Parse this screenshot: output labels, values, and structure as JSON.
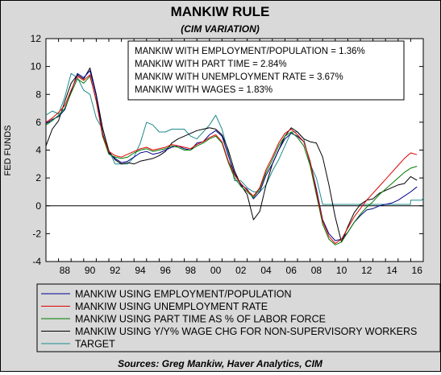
{
  "chart_data": {
    "type": "line",
    "title": "MANKIW RULE",
    "subtitle": "(CIM VARIATION)",
    "ylabel": "FED FUNDS",
    "xlabel": "",
    "xlim": [
      1987,
      2017
    ],
    "ylim": [
      -4,
      12
    ],
    "yticks": [
      -4,
      -2,
      0,
      2,
      4,
      6,
      8,
      10,
      12
    ],
    "xtick_labels": [
      "88",
      "90",
      "92",
      "94",
      "96",
      "98",
      "00",
      "02",
      "04",
      "06",
      "08",
      "10",
      "12",
      "14",
      "16"
    ],
    "zero_line": true,
    "grid": false,
    "legend_position": "bottom",
    "annotations": [
      "MANKIW WITH EMPLOYMENT/POPULATION = 1.36%",
      "MANKIW WITH PART TIME = 2.84%",
      "MANKIW WITH UNEMPLOYMENT RATE = 3.67%",
      "MANKIW WITH WAGES = 1.83%"
    ],
    "source": "Sources:  Greg Mankiw, Haver Analytics, CIM",
    "series": [
      {
        "name": "MANKIW USING EMPLOYMENT/POPULATION",
        "color": "#00008B",
        "points": [
          [
            1987.0,
            5.9
          ],
          [
            1987.5,
            6.2
          ],
          [
            1988.0,
            6.4
          ],
          [
            1988.5,
            6.9
          ],
          [
            1989.0,
            8.2
          ],
          [
            1989.5,
            9.5
          ],
          [
            1990.0,
            9.2
          ],
          [
            1990.5,
            9.7
          ],
          [
            1991.0,
            7.9
          ],
          [
            1991.5,
            5.2
          ],
          [
            1992.0,
            3.8
          ],
          [
            1992.5,
            3.4
          ],
          [
            1993.0,
            3.1
          ],
          [
            1993.5,
            3.2
          ],
          [
            1994.0,
            3.5
          ],
          [
            1994.5,
            3.8
          ],
          [
            1995.0,
            3.9
          ],
          [
            1995.5,
            3.7
          ],
          [
            1996.0,
            3.8
          ],
          [
            1996.5,
            4.0
          ],
          [
            1997.0,
            4.2
          ],
          [
            1997.5,
            4.3
          ],
          [
            1998.0,
            4.1
          ],
          [
            1998.5,
            4.0
          ],
          [
            1999.0,
            4.5
          ],
          [
            1999.5,
            4.6
          ],
          [
            2000.0,
            5.1
          ],
          [
            2000.5,
            5.4
          ],
          [
            2001.0,
            5.0
          ],
          [
            2001.5,
            3.6
          ],
          [
            2002.0,
            2.3
          ],
          [
            2002.5,
            1.5
          ],
          [
            2003.0,
            1.2
          ],
          [
            2003.5,
            0.5
          ],
          [
            2004.0,
            1.0
          ],
          [
            2004.5,
            2.2
          ],
          [
            2005.0,
            3.0
          ],
          [
            2005.5,
            4.0
          ],
          [
            2006.0,
            4.8
          ],
          [
            2006.5,
            5.2
          ],
          [
            2007.0,
            5.0
          ],
          [
            2007.5,
            4.6
          ],
          [
            2008.0,
            3.2
          ],
          [
            2008.5,
            1.2
          ],
          [
            2009.0,
            -1.0
          ],
          [
            2009.5,
            -2.0
          ],
          [
            2010.0,
            -2.5
          ],
          [
            2010.5,
            -2.4
          ],
          [
            2011.0,
            -1.9
          ],
          [
            2011.5,
            -1.2
          ],
          [
            2012.0,
            -0.7
          ],
          [
            2012.5,
            -0.3
          ],
          [
            2013.0,
            -0.2
          ],
          [
            2013.5,
            0.0
          ],
          [
            2014.0,
            0.1
          ],
          [
            2014.5,
            0.2
          ],
          [
            2015.0,
            0.4
          ],
          [
            2015.5,
            0.7
          ],
          [
            2016.0,
            1.0
          ],
          [
            2016.5,
            1.36
          ]
        ]
      },
      {
        "name": "MANKIW USING UNEMPLOYMENT RATE",
        "color": "#E00000",
        "points": [
          [
            1987.0,
            6.0
          ],
          [
            1987.5,
            6.3
          ],
          [
            1988.0,
            6.7
          ],
          [
            1988.5,
            7.2
          ],
          [
            1989.0,
            8.3
          ],
          [
            1989.5,
            9.3
          ],
          [
            1990.0,
            9.0
          ],
          [
            1990.5,
            9.4
          ],
          [
            1991.0,
            7.5
          ],
          [
            1991.5,
            5.1
          ],
          [
            1992.0,
            3.9
          ],
          [
            1992.5,
            3.6
          ],
          [
            1993.0,
            3.5
          ],
          [
            1993.5,
            3.7
          ],
          [
            1994.0,
            3.9
          ],
          [
            1994.5,
            4.1
          ],
          [
            1995.0,
            4.2
          ],
          [
            1995.5,
            4.0
          ],
          [
            1996.0,
            4.1
          ],
          [
            1996.5,
            4.2
          ],
          [
            1997.0,
            4.4
          ],
          [
            1997.5,
            4.3
          ],
          [
            1998.0,
            4.2
          ],
          [
            1998.5,
            4.1
          ],
          [
            1999.0,
            4.4
          ],
          [
            1999.5,
            4.6
          ],
          [
            2000.0,
            4.9
          ],
          [
            2000.5,
            5.1
          ],
          [
            2001.0,
            4.6
          ],
          [
            2001.5,
            3.2
          ],
          [
            2002.0,
            2.2
          ],
          [
            2002.5,
            1.6
          ],
          [
            2003.0,
            1.1
          ],
          [
            2003.5,
            0.7
          ],
          [
            2004.0,
            1.3
          ],
          [
            2004.5,
            2.6
          ],
          [
            2005.0,
            3.5
          ],
          [
            2005.5,
            4.5
          ],
          [
            2006.0,
            5.2
          ],
          [
            2006.5,
            5.5
          ],
          [
            2007.0,
            5.1
          ],
          [
            2007.5,
            4.6
          ],
          [
            2008.0,
            3.2
          ],
          [
            2008.5,
            1.0
          ],
          [
            2009.0,
            -1.1
          ],
          [
            2009.5,
            -2.2
          ],
          [
            2010.0,
            -2.7
          ],
          [
            2010.5,
            -2.4
          ],
          [
            2011.0,
            -1.6
          ],
          [
            2011.5,
            -0.8
          ],
          [
            2012.0,
            -0.2
          ],
          [
            2012.5,
            0.4
          ],
          [
            2013.0,
            0.9
          ],
          [
            2013.5,
            1.4
          ],
          [
            2014.0,
            1.9
          ],
          [
            2014.5,
            2.4
          ],
          [
            2015.0,
            2.9
          ],
          [
            2015.5,
            3.4
          ],
          [
            2016.0,
            3.8
          ],
          [
            2016.5,
            3.67
          ]
        ]
      },
      {
        "name": "MANKIW USING PART TIME AS % OF LABOR FORCE",
        "color": "#007A00",
        "points": [
          [
            1987.0,
            5.8
          ],
          [
            1987.5,
            6.1
          ],
          [
            1988.0,
            6.5
          ],
          [
            1988.5,
            7.0
          ],
          [
            1989.0,
            8.1
          ],
          [
            1989.5,
            9.1
          ],
          [
            1990.0,
            8.8
          ],
          [
            1990.5,
            9.3
          ],
          [
            1991.0,
            7.6
          ],
          [
            1991.5,
            5.0
          ],
          [
            1992.0,
            3.7
          ],
          [
            1992.5,
            3.5
          ],
          [
            1993.0,
            3.4
          ],
          [
            1993.5,
            3.5
          ],
          [
            1994.0,
            3.8
          ],
          [
            1994.5,
            4.0
          ],
          [
            1995.0,
            4.1
          ],
          [
            1995.5,
            3.9
          ],
          [
            1996.0,
            4.0
          ],
          [
            1996.5,
            4.1
          ],
          [
            1997.0,
            4.3
          ],
          [
            1997.5,
            4.2
          ],
          [
            1998.0,
            4.0
          ],
          [
            1998.5,
            4.0
          ],
          [
            1999.0,
            4.3
          ],
          [
            1999.5,
            4.5
          ],
          [
            2000.0,
            4.8
          ],
          [
            2000.5,
            5.0
          ],
          [
            2001.0,
            4.5
          ],
          [
            2001.5,
            3.1
          ],
          [
            2002.0,
            2.0
          ],
          [
            2002.5,
            1.4
          ],
          [
            2003.0,
            1.0
          ],
          [
            2003.5,
            0.6
          ],
          [
            2004.0,
            1.2
          ],
          [
            2004.5,
            2.4
          ],
          [
            2005.0,
            3.3
          ],
          [
            2005.5,
            4.3
          ],
          [
            2006.0,
            5.0
          ],
          [
            2006.5,
            5.3
          ],
          [
            2007.0,
            4.9
          ],
          [
            2007.5,
            4.3
          ],
          [
            2008.0,
            2.9
          ],
          [
            2008.5,
            0.8
          ],
          [
            2009.0,
            -1.3
          ],
          [
            2009.5,
            -2.4
          ],
          [
            2010.0,
            -2.8
          ],
          [
            2010.5,
            -2.6
          ],
          [
            2011.0,
            -1.9
          ],
          [
            2011.5,
            -1.2
          ],
          [
            2012.0,
            -0.6
          ],
          [
            2012.5,
            -0.1
          ],
          [
            2013.0,
            0.3
          ],
          [
            2013.5,
            0.8
          ],
          [
            2014.0,
            1.2
          ],
          [
            2014.5,
            1.6
          ],
          [
            2015.0,
            2.0
          ],
          [
            2015.5,
            2.4
          ],
          [
            2016.0,
            2.7
          ],
          [
            2016.5,
            2.84
          ]
        ]
      },
      {
        "name": "MANKIW USING Y/Y% WAGE CHG FOR NON-SUPERVISORY WORKERS",
        "color": "#000000",
        "points": [
          [
            1987.0,
            4.3
          ],
          [
            1987.5,
            5.5
          ],
          [
            1988.0,
            6.1
          ],
          [
            1988.5,
            7.5
          ],
          [
            1989.0,
            8.8
          ],
          [
            1989.5,
            9.4
          ],
          [
            1990.0,
            9.1
          ],
          [
            1990.5,
            9.9
          ],
          [
            1991.0,
            8.0
          ],
          [
            1991.5,
            5.6
          ],
          [
            1992.0,
            3.9
          ],
          [
            1992.5,
            3.3
          ],
          [
            1993.0,
            3.0
          ],
          [
            1993.5,
            3.1
          ],
          [
            1994.0,
            3.0
          ],
          [
            1994.5,
            3.2
          ],
          [
            1995.0,
            3.3
          ],
          [
            1995.5,
            3.4
          ],
          [
            1996.0,
            3.6
          ],
          [
            1996.5,
            3.9
          ],
          [
            1997.0,
            4.5
          ],
          [
            1997.5,
            4.8
          ],
          [
            1998.0,
            5.0
          ],
          [
            1998.5,
            5.2
          ],
          [
            1999.0,
            5.4
          ],
          [
            1999.5,
            5.5
          ],
          [
            2000.0,
            5.6
          ],
          [
            2000.5,
            5.5
          ],
          [
            2001.0,
            5.1
          ],
          [
            2001.5,
            4.0
          ],
          [
            2002.0,
            2.5
          ],
          [
            2002.5,
            1.5
          ],
          [
            2003.0,
            0.8
          ],
          [
            2003.5,
            -1.0
          ],
          [
            2004.0,
            -0.4
          ],
          [
            2004.5,
            1.5
          ],
          [
            2005.0,
            3.0
          ],
          [
            2005.5,
            4.0
          ],
          [
            2006.0,
            5.0
          ],
          [
            2006.5,
            5.6
          ],
          [
            2007.0,
            5.3
          ],
          [
            2007.5,
            4.8
          ],
          [
            2008.0,
            4.6
          ],
          [
            2008.5,
            4.5
          ],
          [
            2009.0,
            3.5
          ],
          [
            2009.5,
            1.5
          ],
          [
            2010.0,
            -0.8
          ],
          [
            2010.5,
            -2.6
          ],
          [
            2011.0,
            -1.5
          ],
          [
            2011.5,
            -0.5
          ],
          [
            2012.0,
            0.1
          ],
          [
            2012.5,
            0.4
          ],
          [
            2013.0,
            0.5
          ],
          [
            2013.5,
            0.9
          ],
          [
            2014.0,
            1.1
          ],
          [
            2014.5,
            1.3
          ],
          [
            2015.0,
            1.5
          ],
          [
            2015.5,
            1.6
          ],
          [
            2016.0,
            2.1
          ],
          [
            2016.5,
            1.83
          ]
        ]
      },
      {
        "name": "TARGET",
        "color": "#1F8A8A",
        "points": [
          [
            1987.0,
            6.5
          ],
          [
            1987.5,
            6.8
          ],
          [
            1988.0,
            6.6
          ],
          [
            1988.5,
            7.8
          ],
          [
            1989.0,
            9.5
          ],
          [
            1989.5,
            9.2
          ],
          [
            1990.0,
            8.3
          ],
          [
            1990.5,
            8.0
          ],
          [
            1991.0,
            6.3
          ],
          [
            1991.5,
            5.5
          ],
          [
            1992.0,
            4.0
          ],
          [
            1992.5,
            3.0
          ],
          [
            1993.0,
            3.0
          ],
          [
            1993.5,
            3.0
          ],
          [
            1994.0,
            3.5
          ],
          [
            1994.5,
            4.5
          ],
          [
            1995.0,
            6.0
          ],
          [
            1995.5,
            5.8
          ],
          [
            1996.0,
            5.3
          ],
          [
            1996.5,
            5.3
          ],
          [
            1997.0,
            5.5
          ],
          [
            1997.5,
            5.5
          ],
          [
            1998.0,
            5.5
          ],
          [
            1998.5,
            5.0
          ],
          [
            1999.0,
            4.8
          ],
          [
            1999.5,
            5.3
          ],
          [
            2000.0,
            5.8
          ],
          [
            2000.5,
            6.5
          ],
          [
            2001.0,
            5.5
          ],
          [
            2001.5,
            3.8
          ],
          [
            2002.0,
            1.8
          ],
          [
            2002.5,
            1.8
          ],
          [
            2003.0,
            1.3
          ],
          [
            2003.5,
            1.0
          ],
          [
            2004.0,
            1.0
          ],
          [
            2004.5,
            1.5
          ],
          [
            2005.0,
            2.5
          ],
          [
            2005.5,
            3.3
          ],
          [
            2006.0,
            4.3
          ],
          [
            2006.5,
            5.3
          ],
          [
            2007.0,
            5.3
          ],
          [
            2007.5,
            4.8
          ],
          [
            2008.0,
            3.0
          ],
          [
            2008.5,
            2.0
          ],
          [
            2009.0,
            0.1
          ],
          [
            2009.5,
            0.1
          ],
          [
            2010.0,
            0.1
          ],
          [
            2011.0,
            0.1
          ],
          [
            2012.0,
            0.1
          ],
          [
            2013.0,
            0.1
          ],
          [
            2014.0,
            0.1
          ],
          [
            2015.0,
            0.1
          ],
          [
            2015.99,
            0.1
          ],
          [
            2016.0,
            0.4
          ],
          [
            2016.9,
            0.4
          ],
          [
            2017.0,
            0.6
          ]
        ]
      }
    ]
  }
}
